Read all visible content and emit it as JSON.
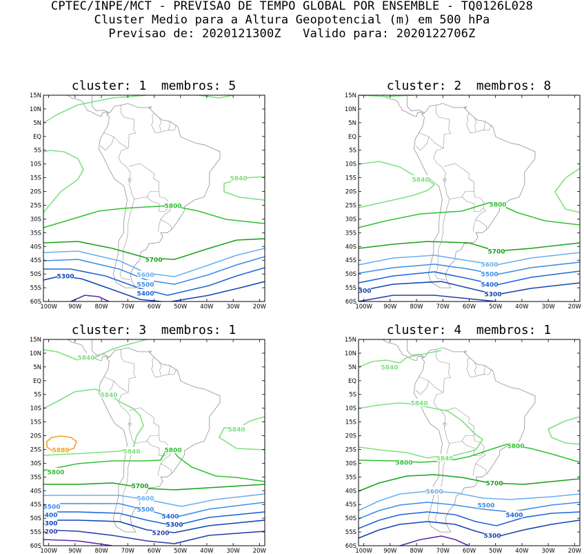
{
  "header": {
    "line1": "CPTEC/INPE/MCT - PREVISAO DE TEMPO GLOBAL POR ENSEMBLE - TQ0126L028",
    "line2": "Cluster Medio para a Altura Geopotencial (m) em 500 hPa",
    "line3": "Previsao de: 2020121300Z   Valido para: 2020122706Z"
  },
  "panels": [
    {
      "title": "cluster: 1  membros: 5"
    },
    {
      "title": "cluster: 2  membros: 8"
    },
    {
      "title": "cluster: 3  membros: 1"
    },
    {
      "title": "cluster: 4  membros: 1"
    }
  ],
  "axes": {
    "lat_ticks": [
      "15N",
      "10N",
      "5N",
      "EQ",
      "5S",
      "10S",
      "15S",
      "20S",
      "25S",
      "30S",
      "35S",
      "40S",
      "45S",
      "50S",
      "55S",
      "60S"
    ],
    "lon_ticks": [
      "100W",
      "90W",
      "80W",
      "70W",
      "60W",
      "50W",
      "40W",
      "30W",
      "20W"
    ],
    "lon_range": [
      -102,
      -18
    ],
    "lat_range": [
      -60,
      15
    ]
  },
  "colors": {
    "c5880": "#f0a020",
    "c5840": "#7fe07f",
    "c5800": "#33c033",
    "c5700": "#19a019",
    "c5600": "#6aaef0",
    "c5500": "#3c8ce8",
    "c5400": "#1c64d8",
    "c5300": "#1444b4",
    "c5200": "#2a3ca8",
    "c5100": "#5a2ca8",
    "coast": "#909090"
  },
  "contour_labels": [
    [
      "5840",
      "5800",
      "5700",
      "5600",
      "5500",
      "5400",
      "5300"
    ],
    [
      "5840",
      "5800",
      "5700",
      "5600",
      "5500",
      "5400",
      "5300",
      "5300"
    ],
    [
      "5840",
      "5840",
      "5840",
      "5880",
      "5840",
      "5800",
      "5800",
      "5700",
      "5600",
      "5500",
      "5500",
      "5400",
      "5400",
      "5300",
      "5300",
      "5200",
      "5200"
    ],
    [
      "5840",
      "5840",
      "5840",
      "5800",
      "5800",
      "5700",
      "5600",
      "5500",
      "5400",
      "5300"
    ]
  ]
}
